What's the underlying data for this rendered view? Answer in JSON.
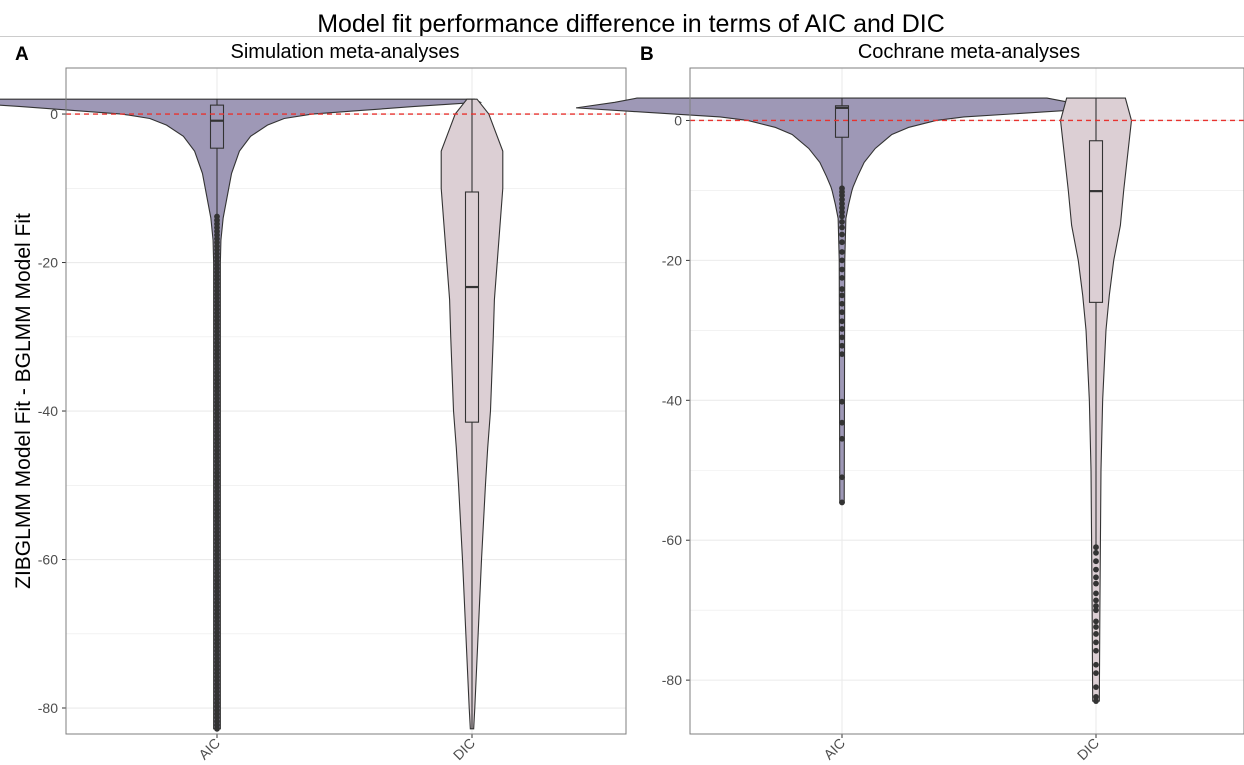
{
  "figure_title": "Model fit performance difference in terms of AIC and DIC",
  "shared_ylabel": "ZIBGLMM Model Fit - BGLMM Model Fit",
  "colors": {
    "aic_fill": "#9e98b6",
    "dic_fill": "#dccfd4",
    "outline": "#333333",
    "reference_line": "#e8332f",
    "grid": "#ebebeb",
    "panel_border": "#7f7f7f",
    "tick_text": "#4d4d4d"
  },
  "chart_data": [
    {
      "type": "violin",
      "panel_letter": "A",
      "title": "Simulation meta-analyses",
      "xlabel": "",
      "ylabel": "ZIBGLMM Model Fit - BGLMM Model Fit",
      "categories": [
        "AIC",
        "DIC"
      ],
      "ylim": [
        -83.5,
        6.2
      ],
      "yticks": [
        0,
        -20,
        -40,
        -60,
        -80
      ],
      "ytick_labels": [
        "0",
        "-20",
        "-40",
        "-60",
        "-80"
      ],
      "reference_line": {
        "y": 0,
        "style": "dashed"
      },
      "grid": true,
      "series": [
        {
          "category": "AIC",
          "box": {
            "q1": -4.6,
            "median": -0.9,
            "q3": 1.2,
            "whisker_low": -13.8,
            "whisker_high": 2.0
          },
          "min": -82.8,
          "max": 2.0,
          "violin_profile": [
            [
              2,
              0.46
            ],
            [
              1.6,
              0.47
            ],
            [
              1,
              0.35
            ],
            [
              0.5,
              0.26
            ],
            [
              0,
              0.17
            ],
            [
              -0.6,
              0.12
            ],
            [
              -1.5,
              0.09
            ],
            [
              -3,
              0.06
            ],
            [
              -5,
              0.04
            ],
            [
              -8,
              0.026
            ],
            [
              -12,
              0.016
            ],
            [
              -14,
              0.011
            ],
            [
              -17,
              0.007
            ],
            [
              -20,
              0.006
            ],
            [
              -40,
              0.006
            ],
            [
              -60,
              0.006
            ],
            [
              -82.8,
              0.006
            ]
          ],
          "outliers_range": [
            -82.8,
            -13.8
          ]
        },
        {
          "category": "DIC",
          "box": {
            "q1": -41.5,
            "median": -23.3,
            "q3": -10.5,
            "whisker_low": -82.8,
            "whisker_high": 2.0
          },
          "min": -82.8,
          "max": 2.0,
          "violin_profile": [
            [
              2,
              0.009
            ],
            [
              0,
              0.03
            ],
            [
              -5,
              0.055
            ],
            [
              -10,
              0.055
            ],
            [
              -15,
              0.05
            ],
            [
              -20,
              0.045
            ],
            [
              -25,
              0.04
            ],
            [
              -30,
              0.038
            ],
            [
              -40,
              0.033
            ],
            [
              -45,
              0.028
            ],
            [
              -50,
              0.024
            ],
            [
              -60,
              0.017
            ],
            [
              -70,
              0.011
            ],
            [
              -80,
              0.005
            ],
            [
              -82.8,
              0.003
            ]
          ]
        }
      ]
    },
    {
      "type": "violin",
      "panel_letter": "B",
      "title": "Cochrane meta-analyses",
      "xlabel": "",
      "ylabel": "",
      "categories": [
        "AIC",
        "DIC"
      ],
      "ylim": [
        -87.7,
        7.5
      ],
      "yticks": [
        0,
        -20,
        -40,
        -60,
        -80
      ],
      "ytick_labels": [
        "0",
        "-20",
        "-40",
        "-60",
        "-80"
      ],
      "reference_line": {
        "y": 0,
        "style": "dashed"
      },
      "grid": true,
      "series": [
        {
          "category": "AIC",
          "box": {
            "q1": -2.4,
            "median": 1.8,
            "q3": 2.1,
            "whisker_low": -9.5,
            "whisker_high": 3.2
          },
          "min": -54.6,
          "max": 3.2,
          "violin_profile": [
            [
              3.2,
              0.37
            ],
            [
              2.6,
              0.41
            ],
            [
              1.8,
              0.48
            ],
            [
              1.2,
              0.36
            ],
            [
              0.5,
              0.22
            ],
            [
              0,
              0.17
            ],
            [
              -1,
              0.12
            ],
            [
              -2,
              0.09
            ],
            [
              -4,
              0.06
            ],
            [
              -6,
              0.04
            ],
            [
              -8,
              0.028
            ],
            [
              -9.5,
              0.02
            ],
            [
              -10,
              0.018
            ],
            [
              -12,
              0.012
            ],
            [
              -14,
              0.007
            ],
            [
              -20,
              0.005
            ],
            [
              -54.6,
              0.004
            ]
          ],
          "outliers": [
            -9.7,
            -10.2,
            -10.7,
            -11.3,
            -11.9,
            -12.5,
            -13.1,
            -13.7,
            -14.5,
            -15.3,
            -16.3,
            -17.4,
            -18.8,
            -20.0,
            -21.3,
            -22.5,
            -24.1,
            -25.0,
            -26.2,
            -27.4,
            -28.7,
            -29.8,
            -31.0,
            -32.2,
            -33.4,
            -40.2,
            -43.2,
            -45.5,
            -51.0,
            -54.6
          ]
        },
        {
          "category": "DIC",
          "box": {
            "q1": -26.0,
            "median": -10.1,
            "q3": -2.9,
            "whisker_low": -61.0,
            "whisker_high": 3.2
          },
          "min": -83.0,
          "max": 3.2,
          "violin_profile": [
            [
              3.2,
              0.053
            ],
            [
              0,
              0.064
            ],
            [
              -5,
              0.057
            ],
            [
              -10,
              0.05
            ],
            [
              -15,
              0.044
            ],
            [
              -20,
              0.032
            ],
            [
              -25,
              0.024
            ],
            [
              -30,
              0.018
            ],
            [
              -40,
              0.012
            ],
            [
              -50,
              0.009
            ],
            [
              -60,
              0.008
            ],
            [
              -70,
              0.007
            ],
            [
              -83,
              0.006
            ]
          ],
          "outliers": [
            -61.0,
            -61.8,
            -63.0,
            -64.2,
            -65.3,
            -66.2,
            -67.6,
            -68.6,
            -69.4,
            -70.0,
            -71.6,
            -72.4,
            -73.4,
            -74.6,
            -75.8,
            -77.8,
            -79.0,
            -81.0,
            -82.4,
            -83.0
          ]
        }
      ]
    }
  ]
}
